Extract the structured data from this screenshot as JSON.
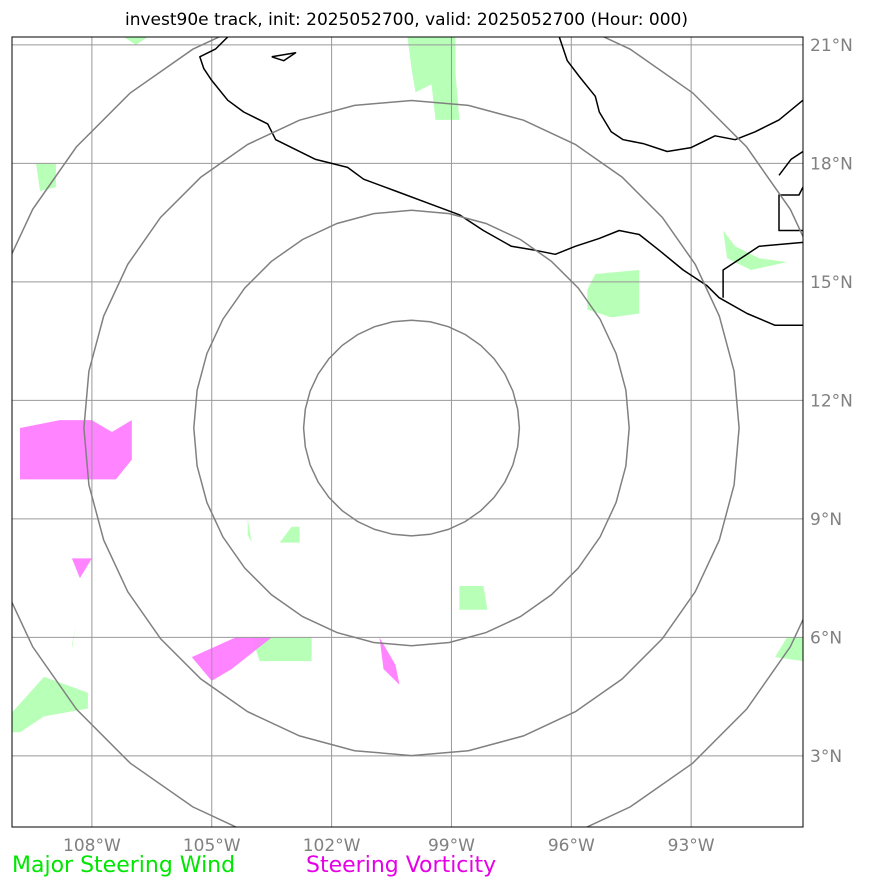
{
  "title": "invest90e track, init: 2025052700, valid: 2025052700 (Hour: 000)",
  "map": {
    "extent": {
      "lon_min": -110.0,
      "lon_max": -90.2,
      "lat_min": 1.2,
      "lat_max": 21.2
    },
    "center": {
      "lon": -100.0,
      "lat": 11.3
    },
    "range_rings_deg": [
      2.7,
      5.45,
      8.2,
      10.95
    ],
    "longitude_ticks": [
      {
        "value": -108,
        "label": "108°W"
      },
      {
        "value": -105,
        "label": "105°W"
      },
      {
        "value": -102,
        "label": "102°W"
      },
      {
        "value": -99,
        "label": "99°W"
      },
      {
        "value": -96,
        "label": "96°W"
      },
      {
        "value": -93,
        "label": "93°W"
      }
    ],
    "latitude_ticks": [
      {
        "value": 21,
        "label": "21°N"
      },
      {
        "value": 18,
        "label": "18°N"
      },
      {
        "value": 15,
        "label": "15°N"
      },
      {
        "value": 12,
        "label": "12°N"
      },
      {
        "value": 9,
        "label": "9°N"
      },
      {
        "value": 6,
        "label": "6°N"
      },
      {
        "value": 3,
        "label": "3°N"
      }
    ],
    "colors": {
      "grid": "#999999",
      "rings": "#808080",
      "coast": "#000000",
      "steering_wind_fill": "#b8ffb8",
      "steering_vorticity_fill": "#ff7aff"
    },
    "coastline": [
      [
        [
          -104.6,
          21.2
        ],
        [
          -104.9,
          20.9
        ],
        [
          -105.3,
          20.7
        ],
        [
          -105.2,
          20.4
        ],
        [
          -105.0,
          20.1
        ],
        [
          -104.6,
          19.6
        ],
        [
          -104.2,
          19.3
        ],
        [
          -103.6,
          19.0
        ],
        [
          -103.4,
          18.6
        ],
        [
          -102.4,
          18.1
        ],
        [
          -101.6,
          17.9
        ],
        [
          -101.2,
          17.6
        ],
        [
          -100.4,
          17.3
        ],
        [
          -99.6,
          17.0
        ],
        [
          -98.8,
          16.7
        ],
        [
          -98.2,
          16.3
        ],
        [
          -97.5,
          15.9
        ],
        [
          -96.9,
          15.8
        ],
        [
          -96.4,
          15.7
        ],
        [
          -95.9,
          15.9
        ],
        [
          -95.3,
          16.1
        ],
        [
          -94.8,
          16.3
        ],
        [
          -94.3,
          16.2
        ],
        [
          -93.8,
          15.8
        ],
        [
          -93.2,
          15.3
        ],
        [
          -92.6,
          14.9
        ],
        [
          -92.3,
          14.6
        ],
        [
          -91.6,
          14.2
        ],
        [
          -90.9,
          13.9
        ],
        [
          -90.2,
          13.9
        ]
      ],
      [
        [
          -96.3,
          21.2
        ],
        [
          -96.1,
          20.6
        ],
        [
          -95.8,
          20.2
        ],
        [
          -95.4,
          19.7
        ],
        [
          -95.3,
          19.3
        ],
        [
          -95.0,
          18.8
        ],
        [
          -94.7,
          18.6
        ],
        [
          -94.2,
          18.5
        ],
        [
          -93.6,
          18.3
        ],
        [
          -93.0,
          18.4
        ],
        [
          -92.4,
          18.7
        ],
        [
          -91.9,
          18.6
        ],
        [
          -91.4,
          18.8
        ],
        [
          -90.8,
          19.1
        ],
        [
          -90.2,
          19.6
        ]
      ],
      [
        [
          -103.5,
          20.7
        ],
        [
          -102.9,
          20.8
        ],
        [
          -103.2,
          20.6
        ],
        [
          -103.5,
          20.7
        ]
      ],
      [
        [
          -90.2,
          16.0
        ],
        [
          -91.3,
          15.9
        ],
        [
          -92.2,
          15.3
        ],
        [
          -92.2,
          14.6
        ]
      ],
      [
        [
          -90.2,
          17.4
        ],
        [
          -90.3,
          17.2
        ],
        [
          -90.8,
          17.2
        ],
        [
          -90.8,
          16.3
        ],
        [
          -90.2,
          16.3
        ]
      ],
      [
        [
          -90.2,
          18.3
        ],
        [
          -90.5,
          18.1
        ],
        [
          -90.8,
          17.7
        ]
      ]
    ],
    "steering_wind_regions": [
      [
        [
          -100.1,
          21.2
        ],
        [
          -98.9,
          21.2
        ],
        [
          -98.9,
          20.3
        ],
        [
          -98.8,
          19.1
        ],
        [
          -99.4,
          19.1
        ],
        [
          -99.5,
          20.0
        ],
        [
          -99.9,
          19.8
        ],
        [
          -100.0,
          20.4
        ]
      ],
      [
        [
          -107.2,
          21.2
        ],
        [
          -106.6,
          21.2
        ],
        [
          -106.9,
          21.0
        ]
      ],
      [
        [
          -109.4,
          18.0
        ],
        [
          -108.9,
          18.0
        ],
        [
          -108.9,
          17.4
        ],
        [
          -109.3,
          17.3
        ]
      ],
      [
        [
          -95.4,
          15.2
        ],
        [
          -94.3,
          15.3
        ],
        [
          -94.3,
          14.2
        ],
        [
          -95.0,
          14.1
        ],
        [
          -95.6,
          14.3
        ],
        [
          -95.6,
          14.8
        ]
      ],
      [
        [
          -92.2,
          16.3
        ],
        [
          -92.1,
          15.6
        ],
        [
          -91.5,
          15.3
        ],
        [
          -90.6,
          15.5
        ],
        [
          -91.3,
          15.6
        ],
        [
          -91.9,
          15.9
        ]
      ],
      [
        [
          -103.0,
          8.8
        ],
        [
          -102.8,
          8.8
        ],
        [
          -102.8,
          8.4
        ],
        [
          -103.3,
          8.4
        ]
      ],
      [
        [
          -98.8,
          7.3
        ],
        [
          -98.2,
          7.3
        ],
        [
          -98.1,
          6.7
        ],
        [
          -98.8,
          6.7
        ]
      ],
      [
        [
          -104.0,
          6.0
        ],
        [
          -102.5,
          6.0
        ],
        [
          -102.5,
          5.4
        ],
        [
          -103.8,
          5.4
        ]
      ],
      [
        [
          -110.0,
          4.1
        ],
        [
          -109.2,
          5.0
        ],
        [
          -108.1,
          4.6
        ],
        [
          -108.1,
          4.2
        ],
        [
          -109.2,
          4.0
        ],
        [
          -109.8,
          3.6
        ],
        [
          -110.0,
          3.6
        ]
      ],
      [
        [
          -108.5,
          5.7
        ],
        [
          -108.4,
          6.3
        ],
        [
          -108.5,
          5.8
        ]
      ],
      [
        [
          -104.1,
          9.0
        ],
        [
          -104.0,
          8.4
        ],
        [
          -104.1,
          8.6
        ]
      ],
      [
        [
          -90.6,
          6.0
        ],
        [
          -90.2,
          6.0
        ],
        [
          -90.2,
          5.4
        ],
        [
          -90.9,
          5.5
        ]
      ]
    ],
    "steering_vorticity_regions": [
      [
        [
          -109.8,
          11.3
        ],
        [
          -108.8,
          11.5
        ],
        [
          -108.0,
          11.5
        ],
        [
          -107.5,
          11.2
        ],
        [
          -107.0,
          11.5
        ],
        [
          -107.0,
          10.5
        ],
        [
          -107.4,
          10.0
        ],
        [
          -109.8,
          10.0
        ],
        [
          -109.8,
          11.0
        ]
      ],
      [
        [
          -108.5,
          8.0
        ],
        [
          -108.0,
          8.0
        ],
        [
          -108.3,
          7.5
        ]
      ],
      [
        [
          -104.4,
          6.0
        ],
        [
          -103.5,
          6.0
        ],
        [
          -104.5,
          5.2
        ],
        [
          -105.0,
          4.9
        ],
        [
          -105.5,
          5.5
        ]
      ],
      [
        [
          -100.8,
          6.0
        ],
        [
          -100.4,
          5.3
        ],
        [
          -100.3,
          4.8
        ],
        [
          -100.7,
          5.2
        ]
      ]
    ]
  }
}
